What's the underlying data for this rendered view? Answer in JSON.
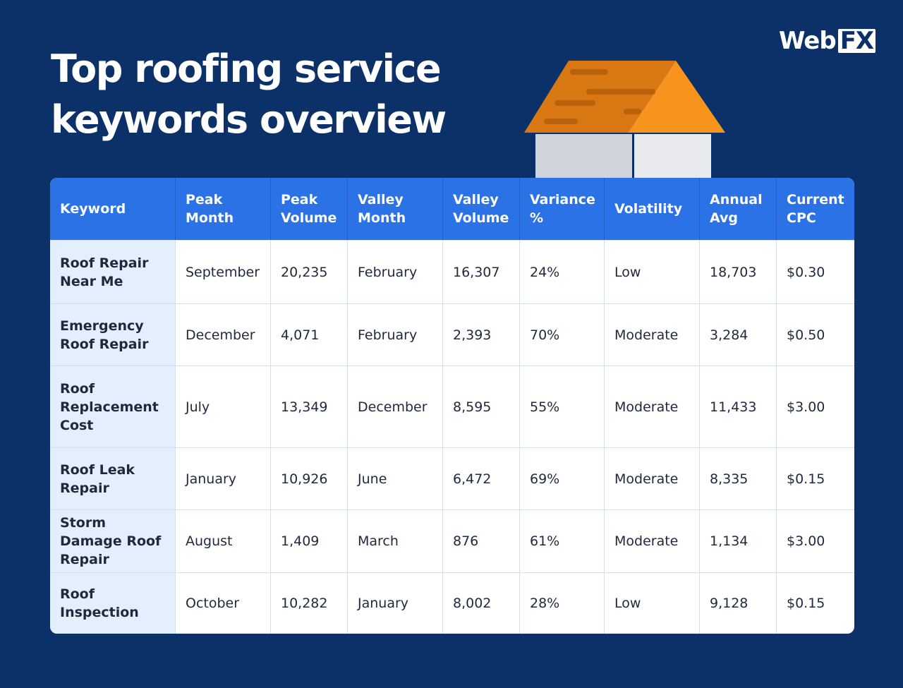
{
  "header": {
    "title": "Top roofing service keywords overview",
    "logo": {
      "word": "Web",
      "mark": "FX"
    }
  },
  "table": {
    "columns": [
      "Keyword",
      "Peak Month",
      "Peak Volume",
      "Valley Month",
      "Valley Volume",
      "Variance %",
      "Volatility",
      "Annual Avg",
      "Current CPC"
    ],
    "rows": [
      [
        "Roof Repair Near Me",
        "September",
        "20,235",
        "February",
        "16,307",
        "24%",
        "Low",
        "18,703",
        "$0.30"
      ],
      [
        "Emergency Roof Repair",
        "December",
        "4,071",
        "February",
        "2,393",
        "70%",
        "Moderate",
        "3,284",
        "$0.50"
      ],
      [
        "Roof Replacement Cost",
        "July",
        "13,349",
        "December",
        "8,595",
        "55%",
        "Moderate",
        "11,433",
        "$3.00"
      ],
      [
        "Roof Leak Repair",
        "January",
        "10,926",
        "June",
        "6,472",
        "69%",
        "Moderate",
        "8,335",
        "$0.15"
      ],
      [
        "Storm Damage Roof Repair",
        "August",
        "1,409",
        "March",
        "876",
        "61%",
        "Moderate",
        "1,134",
        "$3.00"
      ],
      [
        "Roof Inspection",
        "October",
        "10,282",
        "January",
        "8,002",
        "28%",
        "Low",
        "9,128",
        "$0.15"
      ]
    ]
  }
}
